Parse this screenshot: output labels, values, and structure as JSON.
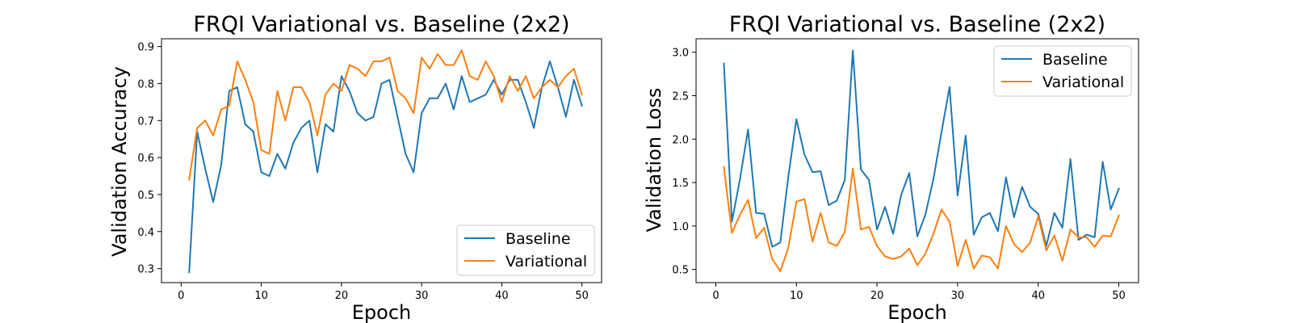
{
  "colors": {
    "baseline": "#1f77b4",
    "variational": "#ff7f0e"
  },
  "chart_data": [
    {
      "type": "line",
      "title": "FRQI Variational vs. Baseline (2x2)",
      "xlabel": "Epoch",
      "ylabel": "Validation Accuracy",
      "xlim": [
        -2.45,
        52.45
      ],
      "ylim": [
        0.262,
        0.921
      ],
      "xticks": [
        0,
        10,
        20,
        30,
        40,
        50
      ],
      "yticks": [
        0.3,
        0.4,
        0.5,
        0.6,
        0.7,
        0.8,
        0.9
      ],
      "ytick_labels": [
        "0.3",
        "0.4",
        "0.5",
        "0.6",
        "0.7",
        "0.8",
        "0.9"
      ],
      "legend_position": "lower-right",
      "grid": false,
      "x": [
        1,
        2,
        3,
        4,
        5,
        6,
        7,
        8,
        9,
        10,
        11,
        12,
        13,
        14,
        15,
        16,
        17,
        18,
        19,
        20,
        21,
        22,
        23,
        24,
        25,
        26,
        27,
        28,
        29,
        30,
        31,
        32,
        33,
        34,
        35,
        36,
        37,
        38,
        39,
        40,
        41,
        42,
        43,
        44,
        45,
        46,
        47,
        48,
        49,
        50
      ],
      "series": [
        {
          "name": "Baseline",
          "color_key": "baseline",
          "values": [
            0.29,
            0.67,
            0.57,
            0.48,
            0.58,
            0.78,
            0.79,
            0.69,
            0.67,
            0.56,
            0.55,
            0.61,
            0.57,
            0.64,
            0.68,
            0.7,
            0.56,
            0.69,
            0.67,
            0.82,
            0.78,
            0.72,
            0.7,
            0.71,
            0.8,
            0.81,
            0.71,
            0.61,
            0.56,
            0.72,
            0.76,
            0.76,
            0.8,
            0.73,
            0.82,
            0.75,
            0.76,
            0.77,
            0.81,
            0.77,
            0.81,
            0.81,
            0.75,
            0.68,
            0.79,
            0.86,
            0.79,
            0.71,
            0.81,
            0.74
          ]
        },
        {
          "name": "Variational",
          "color_key": "variational",
          "values": [
            0.54,
            0.68,
            0.7,
            0.66,
            0.73,
            0.74,
            0.86,
            0.81,
            0.75,
            0.62,
            0.61,
            0.78,
            0.7,
            0.79,
            0.79,
            0.75,
            0.66,
            0.77,
            0.8,
            0.78,
            0.85,
            0.84,
            0.82,
            0.86,
            0.86,
            0.87,
            0.78,
            0.76,
            0.72,
            0.87,
            0.84,
            0.88,
            0.85,
            0.85,
            0.89,
            0.82,
            0.81,
            0.86,
            0.82,
            0.75,
            0.82,
            0.78,
            0.82,
            0.76,
            0.79,
            0.81,
            0.79,
            0.82,
            0.84,
            0.77
          ]
        }
      ]
    },
    {
      "type": "line",
      "title": "FRQI Variational vs. Baseline (2x2)",
      "xlabel": "Epoch",
      "ylabel": "Validation Loss",
      "xlim": [
        -2.45,
        52.45
      ],
      "ylim": [
        0.348,
        3.155
      ],
      "xticks": [
        0,
        10,
        20,
        30,
        40,
        50
      ],
      "yticks": [
        0.5,
        1.0,
        1.5,
        2.0,
        2.5,
        3.0
      ],
      "ytick_labels": [
        "0.5",
        "1.0",
        "1.5",
        "2.0",
        "2.5",
        "3.0"
      ],
      "legend_position": "upper-right",
      "grid": false,
      "x": [
        1,
        2,
        3,
        4,
        5,
        6,
        7,
        8,
        9,
        10,
        11,
        12,
        13,
        14,
        15,
        16,
        17,
        18,
        19,
        20,
        21,
        22,
        23,
        24,
        25,
        26,
        27,
        28,
        29,
        30,
        31,
        32,
        33,
        34,
        35,
        36,
        37,
        38,
        39,
        40,
        41,
        42,
        43,
        44,
        45,
        46,
        47,
        48,
        49,
        50
      ],
      "series": [
        {
          "name": "Baseline",
          "color_key": "baseline",
          "values": [
            2.87,
            1.05,
            1.54,
            2.11,
            1.15,
            1.14,
            0.76,
            0.81,
            1.57,
            2.23,
            1.82,
            1.62,
            1.63,
            1.24,
            1.29,
            1.53,
            3.02,
            1.65,
            1.53,
            0.96,
            1.22,
            0.91,
            1.36,
            1.61,
            0.88,
            1.13,
            1.54,
            2.08,
            2.6,
            1.35,
            2.04,
            0.9,
            1.1,
            1.15,
            0.94,
            1.56,
            1.1,
            1.45,
            1.22,
            1.14,
            0.77,
            1.15,
            0.98,
            1.77,
            0.84,
            0.9,
            0.87,
            1.74,
            1.19,
            1.43
          ]
        },
        {
          "name": "Variational",
          "color_key": "variational",
          "values": [
            1.68,
            0.92,
            1.13,
            1.3,
            0.86,
            0.98,
            0.62,
            0.48,
            0.75,
            1.28,
            1.31,
            0.82,
            1.15,
            0.81,
            0.77,
            0.93,
            1.66,
            0.96,
            0.99,
            0.77,
            0.65,
            0.62,
            0.65,
            0.74,
            0.55,
            0.68,
            0.91,
            1.19,
            1.05,
            0.54,
            0.84,
            0.51,
            0.66,
            0.64,
            0.51,
            1.0,
            0.79,
            0.7,
            0.81,
            1.11,
            0.72,
            0.89,
            0.6,
            0.96,
            0.87,
            0.87,
            0.76,
            0.89,
            0.88,
            1.12
          ]
        }
      ]
    }
  ]
}
